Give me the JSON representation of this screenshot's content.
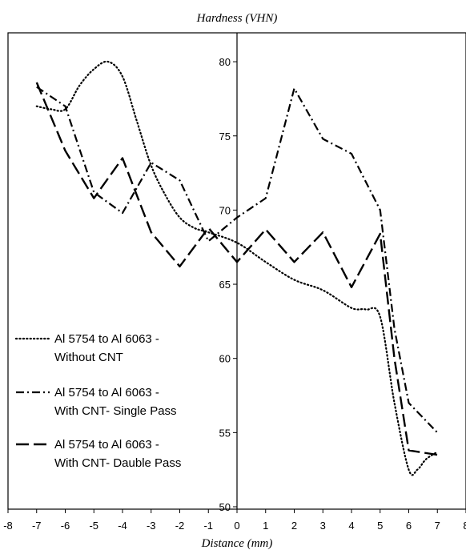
{
  "chart_data": {
    "type": "line",
    "title": "Hardness (VHN)",
    "xlabel": "Distance (mm)",
    "ylabel": "",
    "xlim": [
      -8,
      8
    ],
    "ylim": [
      50,
      83
    ],
    "x_ticks": [
      -8,
      -7,
      -6,
      -5,
      -4,
      -3,
      -2,
      -1,
      0,
      1,
      2,
      3,
      4,
      5,
      6,
      7,
      8
    ],
    "y_ticks": [
      50,
      55,
      60,
      65,
      70,
      75,
      80
    ],
    "grid": false,
    "legend_position": "lower-left",
    "series": [
      {
        "name": "Al 5754 to Al 6063 - Without CNT",
        "name_lines": [
          "Al 5754 to Al 6063 -",
          "Without CNT"
        ],
        "style": "dotted",
        "x": [
          -7,
          -6.5,
          -6,
          -5.5,
          -5,
          -4.5,
          -4,
          -3.5,
          -3,
          -2.5,
          -2,
          -1.5,
          -1,
          0,
          1,
          2,
          3,
          4,
          4.5,
          5,
          5.5,
          6,
          6.3,
          6.6,
          7
        ],
        "y": [
          77.0,
          76.8,
          76.8,
          78.4,
          79.5,
          80.0,
          79.0,
          76.0,
          73.0,
          71.0,
          69.5,
          68.8,
          68.5,
          67.8,
          66.5,
          65.3,
          64.6,
          63.4,
          63.3,
          62.8,
          57.0,
          52.5,
          52.5,
          53.2,
          53.7
        ]
      },
      {
        "name": "Al 5754 to Al 6063 - With CNT- Single Pass",
        "name_lines": [
          "Al 5754 to Al 6063 -",
          "With CNT-  Single Pass"
        ],
        "style": "dash-dot",
        "x": [
          -7,
          -6,
          -5,
          -4,
          -3,
          -2,
          -1,
          0,
          1,
          2,
          3,
          4,
          5,
          5.5,
          6,
          7
        ],
        "y": [
          78.3,
          77.0,
          71.2,
          69.8,
          73.2,
          72.0,
          67.9,
          69.5,
          70.8,
          78.2,
          74.8,
          73.8,
          70.0,
          62.0,
          57.0,
          55.0
        ]
      },
      {
        "name": "Al 5754 to Al 6063 - With CNT- Dauble Pass",
        "name_lines": [
          "Al 5754 to Al 6063 -",
          "With CNT- Dauble  Pass"
        ],
        "style": "long-dash",
        "x": [
          -7,
          -6,
          -5,
          -4,
          -3,
          -2,
          -1,
          0,
          1,
          2,
          3,
          4,
          5,
          5.5,
          6,
          7
        ],
        "y": [
          78.6,
          74.0,
          70.8,
          73.5,
          68.5,
          66.2,
          68.8,
          66.5,
          68.7,
          66.5,
          68.5,
          64.8,
          68.4,
          60.0,
          53.8,
          53.5
        ]
      }
    ]
  }
}
